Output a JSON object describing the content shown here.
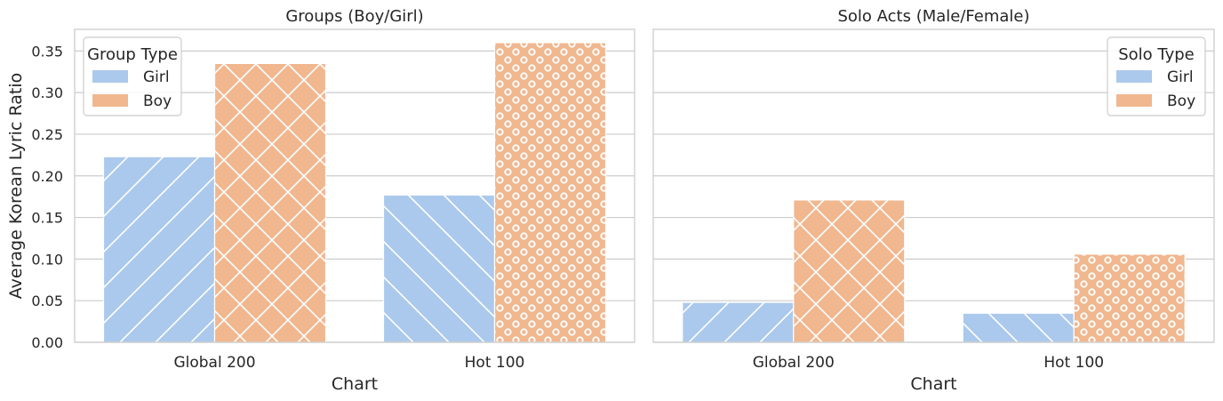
{
  "chart_data": [
    {
      "type": "bar",
      "title": "Groups (Boy/Girl)",
      "xlabel": "Chart",
      "ylabel": "Average Korean Lyric Ratio",
      "categories": [
        "Global 200",
        "Hot 100"
      ],
      "ylim": [
        0,
        0.376
      ],
      "yticks": [
        "0.00",
        "0.05",
        "0.10",
        "0.15",
        "0.20",
        "0.25",
        "0.30",
        "0.35"
      ],
      "grid": true,
      "legend": {
        "title": "Group Type",
        "placement": "top-left"
      },
      "series": [
        {
          "name": "Girl",
          "values": [
            0.223,
            0.177
          ],
          "color": "#abc9ec"
        },
        {
          "name": "Boy",
          "values": [
            0.335,
            0.36
          ],
          "color": "#f1b78f"
        }
      ]
    },
    {
      "type": "bar",
      "title": "Solo Acts (Male/Female)",
      "xlabel": "Chart",
      "ylabel": "",
      "categories": [
        "Global 200",
        "Hot 100"
      ],
      "ylim": [
        0,
        0.376
      ],
      "yticks": [],
      "grid": true,
      "legend": {
        "title": "Solo Type",
        "placement": "top-right"
      },
      "series": [
        {
          "name": "Girl",
          "values": [
            0.048,
            0.035
          ],
          "color": "#abc9ec"
        },
        {
          "name": "Boy",
          "values": [
            0.171,
            0.106
          ],
          "color": "#f1b78f"
        }
      ]
    }
  ],
  "hatches": [
    [
      "diag-fwd",
      "cross"
    ],
    [
      "diag-back",
      "rings"
    ]
  ],
  "colors": {
    "grid": "#cccccc",
    "spine": "#cccccc",
    "text": "#262626",
    "hatch": "#ffffff"
  }
}
